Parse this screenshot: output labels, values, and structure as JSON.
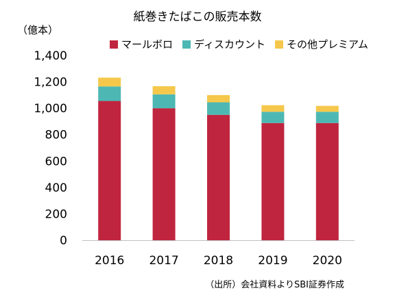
{
  "chart_data": {
    "type": "bar",
    "stacked": true,
    "title": "紙巻きたばこの販売本数",
    "unit_label": "（億本）",
    "categories": [
      "2016",
      "2017",
      "2018",
      "2019",
      "2020"
    ],
    "series": [
      {
        "name": "マールボロ",
        "color": "#C0253F",
        "values": [
          1055,
          1000,
          950,
          888,
          888
        ]
      },
      {
        "name": "ディスカウント",
        "color": "#4DB8B3",
        "values": [
          110,
          105,
          95,
          85,
          85
        ]
      },
      {
        "name": "その他プレミアム",
        "color": "#F5C84C",
        "values": [
          67,
          62,
          55,
          50,
          45
        ]
      }
    ],
    "yticks": [
      "0",
      "200",
      "400",
      "600",
      "800",
      "1,000",
      "1,200",
      "1,400"
    ],
    "ylim": [
      0,
      1400
    ],
    "grid": false,
    "legend_position": "top",
    "source": "（出所）会社資料よりSBI証券作成"
  }
}
